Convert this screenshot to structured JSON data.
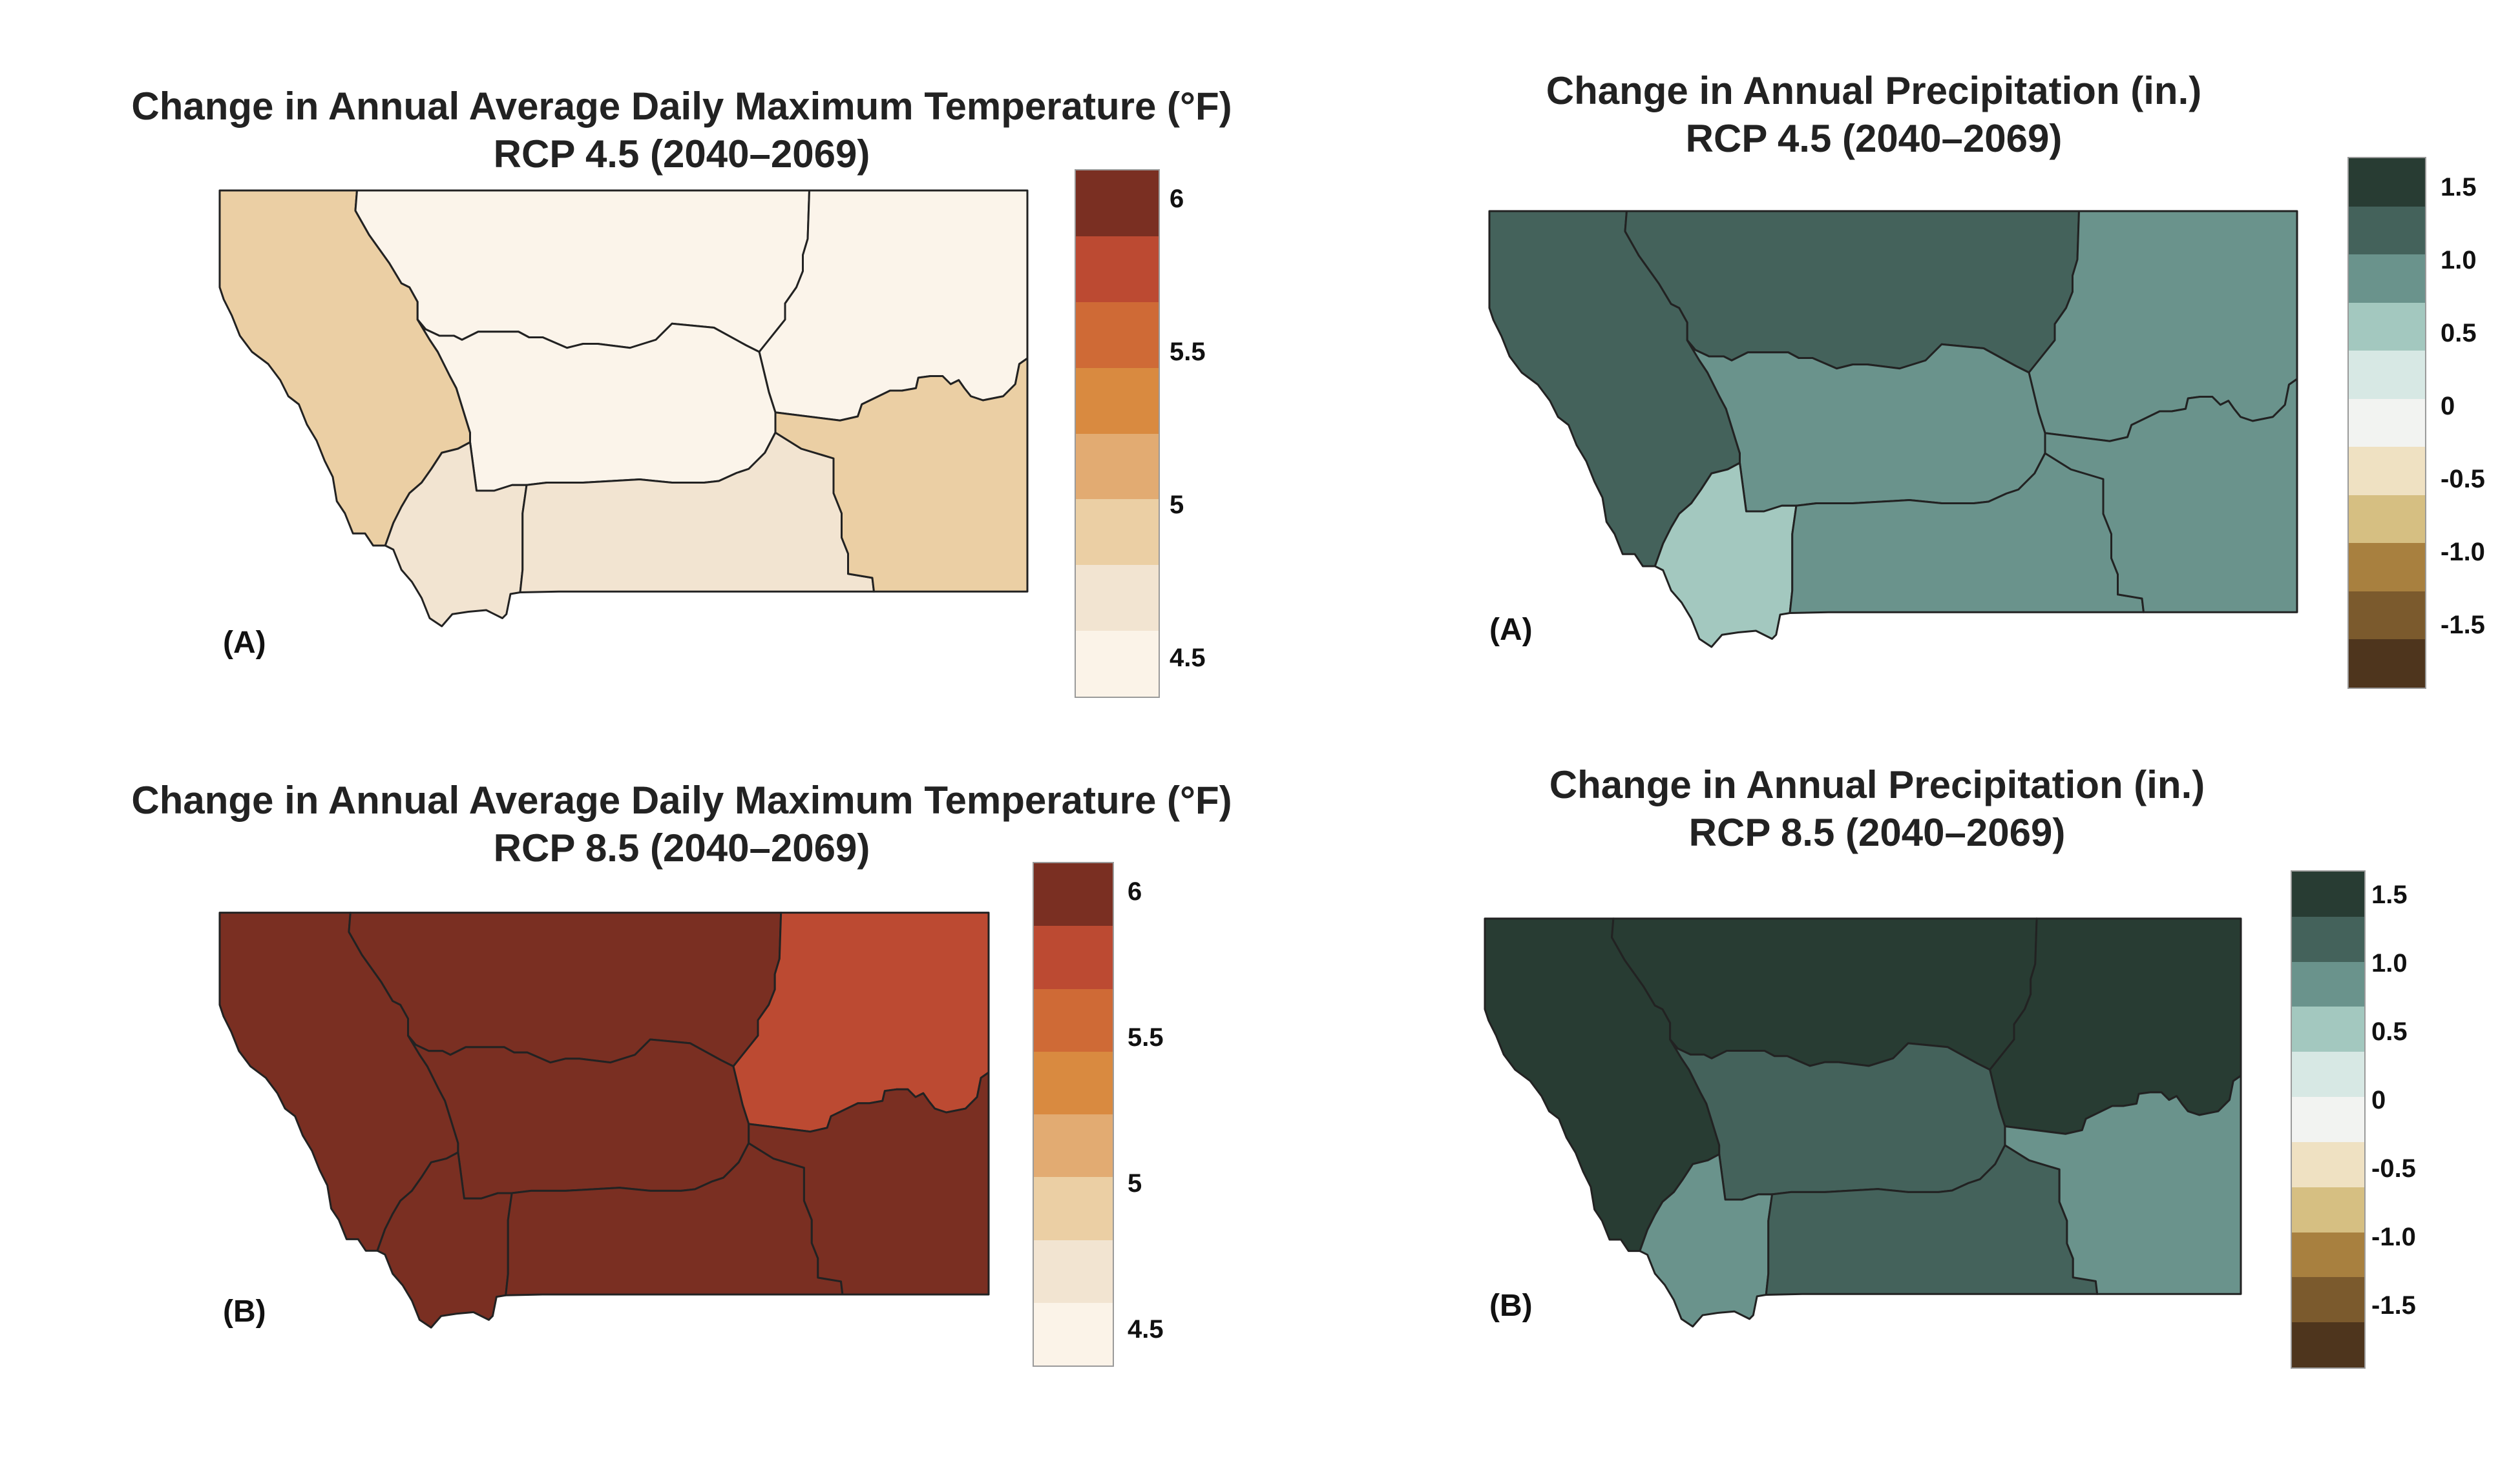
{
  "panels": {
    "tempA": {
      "title_line1": "Change in Annual Average Daily Maximum Temperature (°F)",
      "title_line2": "RCP 4.5 (2040–2069)",
      "label": "(A)",
      "legend_ticks": [
        "6",
        "5.5",
        "5",
        "4.5"
      ],
      "legend_colors": [
        "#7a2f22",
        "#bc4a32",
        "#cf6a36",
        "#d98a40",
        "#e2ab72",
        "#ebcfa4",
        "#f2e4d1",
        "#fbf3e8"
      ],
      "regions": {
        "northwest": "#ebcfa4",
        "north_central": "#fbf4ea",
        "northeast": "#fbf4ea",
        "central": "#fbf4ea",
        "southwest": "#f2e4d1",
        "south_central": "#f2e4d1",
        "southeast": "#ebcfa4"
      }
    },
    "tempB": {
      "title_line1": "Change in Annual Average Daily Maximum Temperature (°F)",
      "title_line2": "RCP 8.5 (2040–2069)",
      "label": "(B)",
      "legend_ticks": [
        "6",
        "5.5",
        "5",
        "4.5"
      ],
      "legend_colors": [
        "#7a2f22",
        "#bc4a32",
        "#cf6a36",
        "#d98a40",
        "#e2ab72",
        "#ebcfa4",
        "#f2e4d1",
        "#fbf3e8"
      ],
      "regions": {
        "northwest": "#7a2f22",
        "north_central": "#7a2f22",
        "northeast": "#bc4a32",
        "central": "#7a2f22",
        "southwest": "#7a2f22",
        "south_central": "#7a2f22",
        "southeast": "#7a2f22"
      }
    },
    "precipA": {
      "title_line1": "Change in Annual Precipitation (in.)",
      "title_line2": "RCP 4.5 (2040–2069)",
      "label": "(A)",
      "legend_ticks": [
        "1.5",
        "1.0",
        "0.5",
        "0",
        "-0.5",
        "-1.0",
        "-1.5"
      ],
      "legend_colors": [
        "#283c33",
        "#44625b",
        "#6a938c",
        "#a3c8bf",
        "#d7e8e4",
        "#f2f3f1",
        "#efe1c2",
        "#d6bf82",
        "#a8803f",
        "#7b5a2d",
        "#4e351d"
      ],
      "regions": {
        "northwest": "#44625b",
        "north_central": "#44625b",
        "northeast": "#6a938c",
        "central": "#6a938c",
        "southwest": "#a3c8bf",
        "south_central": "#6a938c",
        "southeast": "#6a938c"
      }
    },
    "precipB": {
      "title_line1": "Change in Annual Precipitation (in.)",
      "title_line2": "RCP 8.5 (2040–2069)",
      "label": "(B)",
      "legend_ticks": [
        "1.5",
        "1.0",
        "0.5",
        "0",
        "-0.5",
        "-1.0",
        "-1.5"
      ],
      "legend_colors": [
        "#283c33",
        "#44625b",
        "#6a938c",
        "#a3c8bf",
        "#d7e8e4",
        "#f2f3f1",
        "#efe1c2",
        "#d6bf82",
        "#a8803f",
        "#7b5a2d",
        "#4e351d"
      ],
      "regions": {
        "northwest": "#283c33",
        "north_central": "#283c33",
        "northeast": "#283c33",
        "central": "#44625b",
        "southwest": "#6a938c",
        "south_central": "#44625b",
        "southeast": "#6a938c"
      }
    }
  }
}
